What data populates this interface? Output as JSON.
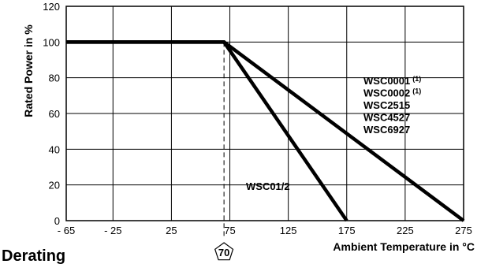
{
  "chart_data": {
    "type": "line",
    "title": "Derating",
    "xlabel": "Ambient Temperature in °C",
    "ylabel": "Rated Power in %",
    "xlim": [
      -65,
      275
    ],
    "ylim": [
      0,
      120
    ],
    "x_ticks": [
      -65,
      -25,
      25,
      75,
      125,
      175,
      225,
      275
    ],
    "x_tick_labels": [
      "- 65",
      "- 25",
      "25",
      "75",
      "125",
      "175",
      "225",
      "275"
    ],
    "y_ticks": [
      0,
      20,
      40,
      60,
      80,
      100,
      120
    ],
    "y_tick_labels": [
      "0",
      "20",
      "40",
      "60",
      "80",
      "100",
      "120"
    ],
    "grid": true,
    "series": [
      {
        "name": "WSC01/2",
        "x": [
          -65,
          70,
          175
        ],
        "y": [
          100,
          100,
          0
        ]
      },
      {
        "name": "WSC0001/WSC0002/WSC2515/WSC4527/WSC6927",
        "x": [
          -65,
          70,
          275
        ],
        "y": [
          100,
          100,
          0
        ]
      }
    ],
    "legend_labels": [
      {
        "text": "WSC0001",
        "sup": "(1)"
      },
      {
        "text": "WSC0002",
        "sup": "(1)"
      },
      {
        "text": "WSC2515",
        "sup": ""
      },
      {
        "text": "WSC4527",
        "sup": ""
      },
      {
        "text": "WSC6927",
        "sup": ""
      }
    ],
    "inline_label": "WSC01/2",
    "marker": {
      "x": 70,
      "label": "70"
    }
  }
}
